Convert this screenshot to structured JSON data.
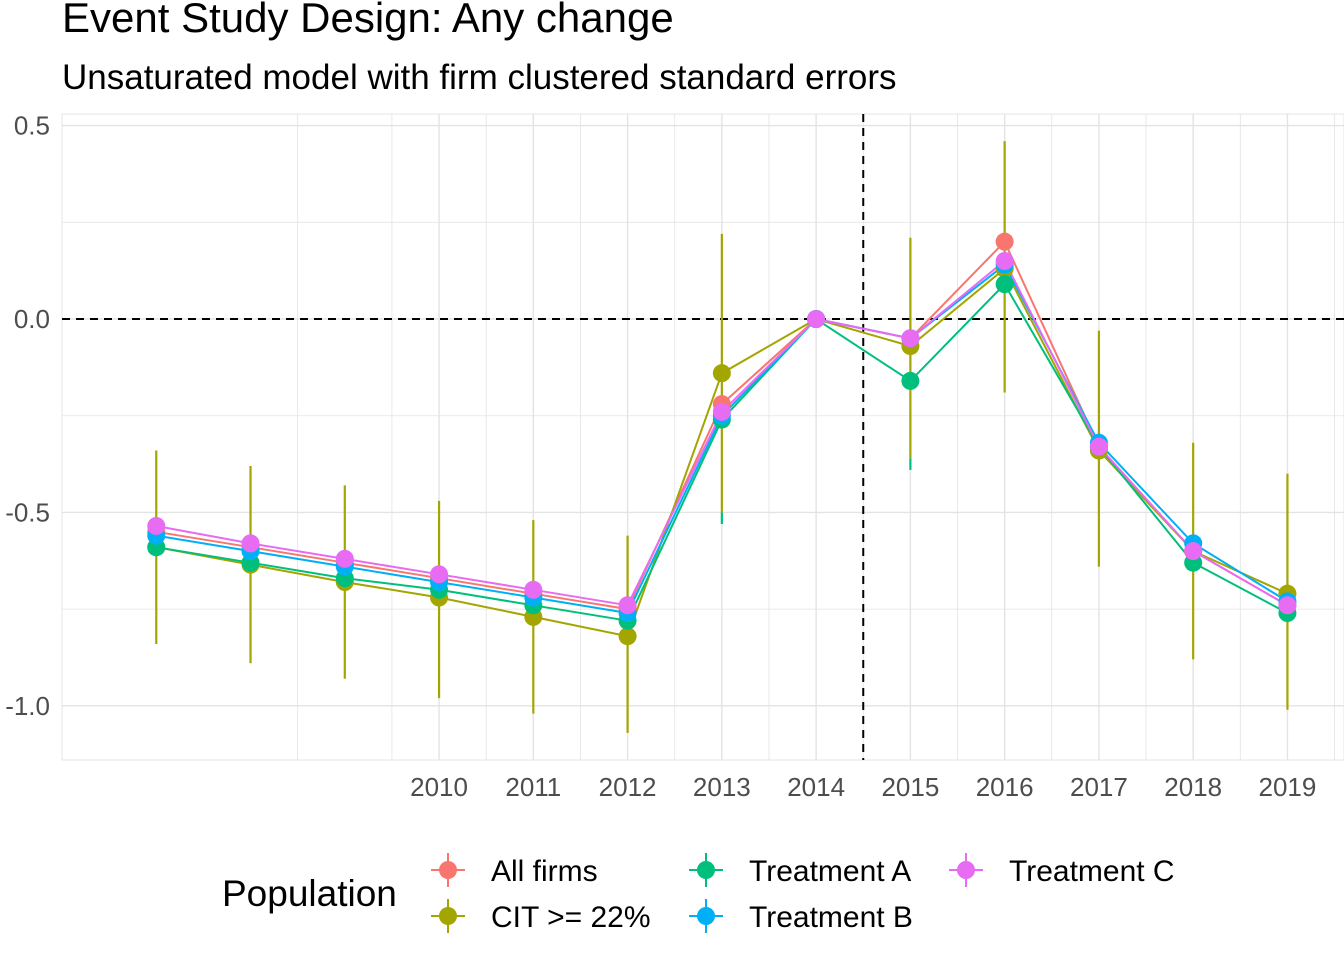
{
  "chart_data": {
    "type": "line",
    "title": "Event Study Design: Any change",
    "subtitle": "Unsaturated model with firm clustered standard errors",
    "xlabel": "",
    "ylabel": "",
    "x": [
      2007,
      2008,
      2009,
      2010,
      2011,
      2012,
      2013,
      2014,
      2015,
      2016,
      2017,
      2018,
      2019
    ],
    "x_tick_labels": [
      "2010",
      "2011",
      "2012",
      "2013",
      "2014",
      "2015",
      "2016",
      "2017",
      "2018",
      "2019"
    ],
    "x_tick_values": [
      2010,
      2011,
      2012,
      2013,
      2014,
      2015,
      2016,
      2017,
      2018,
      2019
    ],
    "xlim": [
      2006.0,
      2019.6
    ],
    "ylim": [
      -1.14,
      0.53
    ],
    "y_ticks": [
      0.5,
      0.0,
      -0.5,
      -1.0
    ],
    "y_tick_labels": [
      "0.5",
      "0.0",
      "-0.5",
      "-1.0"
    ],
    "reference_lines": {
      "horizontal": 0.0,
      "vertical": 2014.5
    },
    "grid": true,
    "legend": {
      "title": "Population",
      "placement": "bottom",
      "entries": [
        "All firms",
        "CIT >= 22%",
        "Treatment A",
        "Treatment B",
        "Treatment C"
      ]
    },
    "series": [
      {
        "name": "All firms",
        "color": "#F8766D",
        "values": [
          -0.55,
          -0.59,
          -0.63,
          -0.67,
          -0.71,
          -0.75,
          -0.22,
          0.0,
          -0.05,
          0.2,
          -0.33,
          -0.6,
          -0.74
        ]
      },
      {
        "name": "CIT >= 22%",
        "color": "#A3A500",
        "values": [
          -0.59,
          -0.635,
          -0.68,
          -0.72,
          -0.77,
          -0.82,
          -0.14,
          0.0,
          -0.07,
          0.13,
          -0.34,
          -0.6,
          -0.71
        ],
        "ci_low": [
          -0.84,
          -0.89,
          -0.93,
          -0.98,
          -1.02,
          -1.07,
          -0.5,
          null,
          -0.36,
          -0.19,
          -0.64,
          -0.88,
          -1.01
        ],
        "ci_high": [
          -0.34,
          -0.38,
          -0.43,
          -0.47,
          -0.52,
          -0.56,
          0.22,
          null,
          0.21,
          0.46,
          -0.03,
          -0.32,
          -0.4
        ]
      },
      {
        "name": "Treatment A",
        "color": "#00BF7D",
        "values": [
          -0.59,
          -0.63,
          -0.67,
          -0.7,
          -0.74,
          -0.78,
          -0.26,
          0.0,
          -0.16,
          0.09,
          -0.33,
          -0.63,
          -0.76
        ],
        "ci_low": [
          null,
          null,
          null,
          null,
          null,
          null,
          -0.53,
          null,
          -0.39,
          null,
          null,
          null,
          null
        ],
        "ci_high": [
          null,
          null,
          null,
          null,
          null,
          null,
          -0.5,
          null,
          -0.36,
          null,
          null,
          null,
          null
        ]
      },
      {
        "name": "Treatment B",
        "color": "#00B0F6",
        "values": [
          -0.56,
          -0.6,
          -0.64,
          -0.68,
          -0.72,
          -0.76,
          -0.25,
          0.0,
          -0.05,
          0.14,
          -0.32,
          -0.58,
          -0.73
        ]
      },
      {
        "name": "Treatment C",
        "color": "#E76BF3",
        "values": [
          -0.535,
          -0.58,
          -0.62,
          -0.66,
          -0.7,
          -0.74,
          -0.24,
          0.0,
          -0.05,
          0.15,
          -0.33,
          -0.6,
          -0.74
        ]
      }
    ]
  }
}
